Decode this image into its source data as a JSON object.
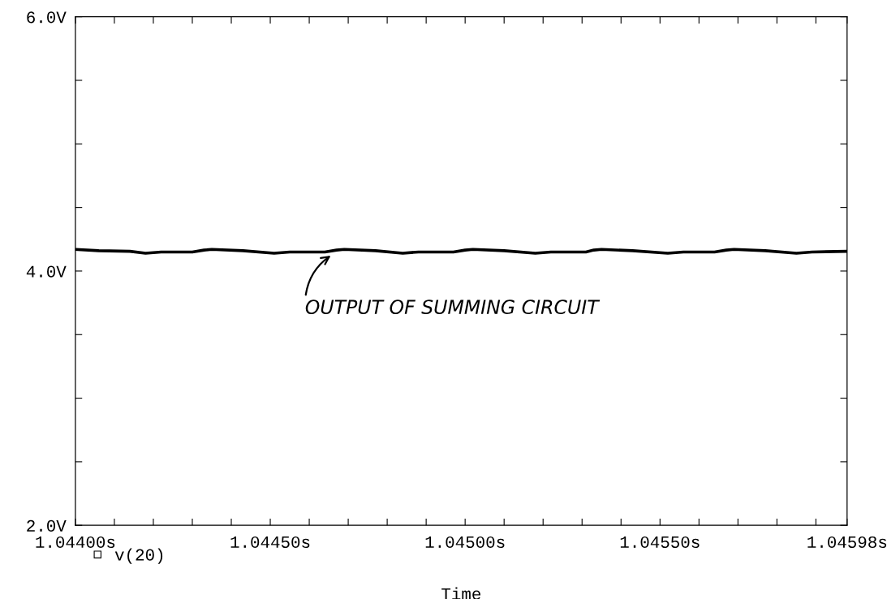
{
  "chart_data": {
    "type": "line",
    "xlabel": "Time",
    "x": [
      1.044,
      1.04406,
      1.04414,
      1.04418,
      1.04422,
      1.0443,
      1.04433,
      1.04435,
      1.04443,
      1.04451,
      1.04455,
      1.04464,
      1.04467,
      1.04469,
      1.04477,
      1.04484,
      1.04488,
      1.04497,
      1.045,
      1.04502,
      1.0451,
      1.04518,
      1.04522,
      1.04531,
      1.04533,
      1.04535,
      1.04543,
      1.04552,
      1.04556,
      1.04564,
      1.04567,
      1.04569,
      1.04577,
      1.04585,
      1.04589,
      1.04598
    ],
    "series": [
      {
        "name": "v(20)",
        "color": "#000000",
        "values": [
          4.17,
          4.16,
          4.155,
          4.14,
          4.15,
          4.15,
          4.165,
          4.17,
          4.16,
          4.14,
          4.15,
          4.15,
          4.165,
          4.17,
          4.16,
          4.14,
          4.15,
          4.15,
          4.165,
          4.17,
          4.16,
          4.14,
          4.15,
          4.15,
          4.165,
          4.17,
          4.16,
          4.14,
          4.15,
          4.15,
          4.165,
          4.17,
          4.16,
          4.14,
          4.15,
          4.155
        ]
      }
    ],
    "xlim": [
      1.044,
      1.04598
    ],
    "xticks": [
      {
        "value": 1.044,
        "label": "1.04400s"
      },
      {
        "value": 1.0441,
        "label": null
      },
      {
        "value": 1.0442,
        "label": null
      },
      {
        "value": 1.0443,
        "label": null
      },
      {
        "value": 1.0444,
        "label": null
      },
      {
        "value": 1.0445,
        "label": "1.04450s"
      },
      {
        "value": 1.0446,
        "label": null
      },
      {
        "value": 1.0447,
        "label": null
      },
      {
        "value": 1.0448,
        "label": null
      },
      {
        "value": 1.0449,
        "label": null
      },
      {
        "value": 1.045,
        "label": "1.04500s"
      },
      {
        "value": 1.0451,
        "label": null
      },
      {
        "value": 1.0452,
        "label": null
      },
      {
        "value": 1.0453,
        "label": null
      },
      {
        "value": 1.0454,
        "label": null
      },
      {
        "value": 1.0455,
        "label": "1.04550s"
      },
      {
        "value": 1.0456,
        "label": null
      },
      {
        "value": 1.0457,
        "label": null
      },
      {
        "value": 1.0458,
        "label": null
      },
      {
        "value": 1.0459,
        "label": null
      },
      {
        "value": 1.04598,
        "label": "1.04598s"
      }
    ],
    "ylim": [
      2.0,
      6.0
    ],
    "yticks": [
      {
        "value": 2.0,
        "label": "2.0V"
      },
      {
        "value": 2.5,
        "label": null
      },
      {
        "value": 3.0,
        "label": null
      },
      {
        "value": 3.5,
        "label": null
      },
      {
        "value": 4.0,
        "label": "4.0V"
      },
      {
        "value": 4.5,
        "label": null
      },
      {
        "value": 5.0,
        "label": null
      },
      {
        "value": 5.5,
        "label": null
      },
      {
        "value": 6.0,
        "label": "6.0V"
      }
    ],
    "annotations": [
      {
        "text": "OUTPUT OF SUMMING CIRCUIT",
        "x": 1.04467,
        "y": 4.15
      }
    ],
    "legend": "bottom left",
    "grid": false,
    "line_style": "solid"
  }
}
